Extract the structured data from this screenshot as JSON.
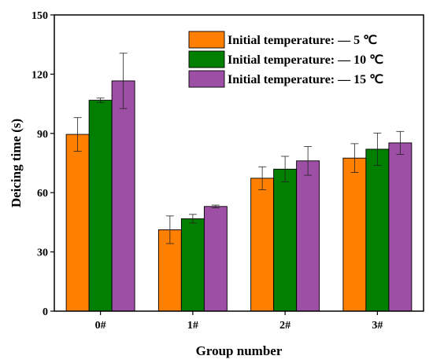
{
  "chart_data": {
    "type": "bar",
    "xlabel": "Group number",
    "ylabel": "Deicing time (s)",
    "ylim": [
      0,
      150
    ],
    "yticks": [
      0,
      30,
      60,
      90,
      120,
      150
    ],
    "categories": [
      "0#",
      "1#",
      "2#",
      "3#"
    ],
    "legend_position": "top-right",
    "series": [
      {
        "name": "Initial temperature: — 5 ℃",
        "color": "#ff8000",
        "values": [
          89.5,
          41.2,
          67.3,
          77.5
        ],
        "errors": [
          8.5,
          7.0,
          5.8,
          7.3
        ]
      },
      {
        "name": "Initial temperature: — 10 ℃",
        "color": "#007f00",
        "values": [
          106.8,
          46.8,
          71.9,
          82.0
        ],
        "errors": [
          1.1,
          2.2,
          6.5,
          8.2
        ]
      },
      {
        "name": "Initial temperature: — 15 ℃",
        "color": "#9c4fa4",
        "values": [
          116.6,
          53.0,
          76.1,
          85.2
        ],
        "errors": [
          14.0,
          0.7,
          7.3,
          5.8
        ]
      }
    ]
  }
}
